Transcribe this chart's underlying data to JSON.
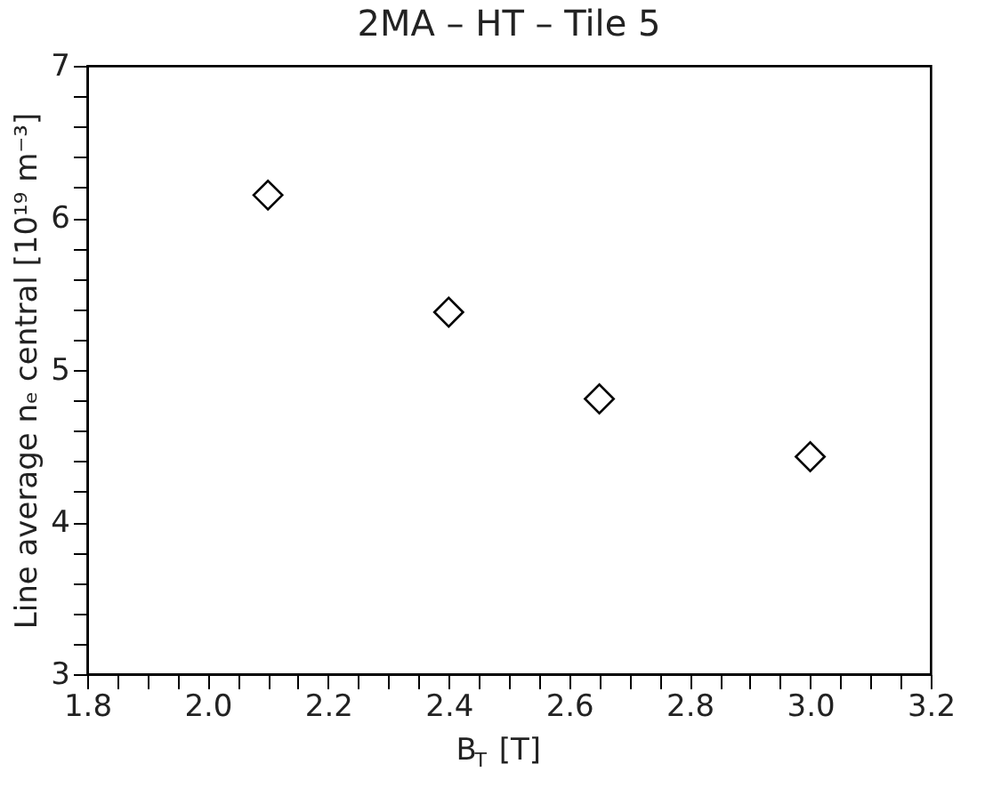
{
  "chart_data": {
    "type": "scatter",
    "title": "2MA – HT – Tile 5",
    "xlabel": "B$_{T}$ [T]",
    "ylabel": "Line average nₑ central [10¹⁹ m⁻³]",
    "x": [
      2.1,
      2.4,
      2.65,
      3.0
    ],
    "series": [
      {
        "color": "#000000",
        "values": [
          6.15,
          5.38,
          4.81,
          4.43
        ]
      }
    ],
    "marker": "diamond",
    "grid": false,
    "xlim": [
      1.8,
      3.2
    ],
    "xticks": [
      1.8,
      {
        "value": 1.85,
        "label": null
      },
      {
        "value": 1.9,
        "label": null
      },
      {
        "value": 1.95,
        "label": null
      },
      {
        "value": 2.0,
        "label": "2.0"
      },
      {
        "value": 2.05,
        "label": null
      },
      {
        "value": 2.1,
        "label": null
      },
      {
        "value": 2.15,
        "label": null
      },
      2.2,
      {
        "value": 2.25,
        "label": null
      },
      {
        "value": 2.3,
        "label": null
      },
      {
        "value": 2.35,
        "label": null
      },
      2.4,
      {
        "value": 2.45,
        "label": null
      },
      {
        "value": 2.5,
        "label": null
      },
      {
        "value": 2.55,
        "label": null
      },
      2.6,
      {
        "value": 2.65,
        "label": null
      },
      {
        "value": 2.7,
        "label": null
      },
      {
        "value": 2.75,
        "label": null
      },
      2.8,
      {
        "value": 2.85,
        "label": null
      },
      {
        "value": 2.9,
        "label": null
      },
      {
        "value": 2.95,
        "label": null
      },
      {
        "value": 3.0,
        "label": "3.0"
      },
      {
        "value": 3.05,
        "label": null
      },
      {
        "value": 3.1,
        "label": null
      },
      {
        "value": 3.15,
        "label": null
      },
      3.2
    ],
    "ylim": [
      3,
      7
    ],
    "yticks": [
      3,
      {
        "value": 3.2,
        "label": null
      },
      {
        "value": 3.4,
        "label": null
      },
      {
        "value": 3.6,
        "label": null
      },
      {
        "value": 3.8,
        "label": null
      },
      4,
      {
        "value": 4.2,
        "label": null
      },
      {
        "value": 4.4,
        "label": null
      },
      {
        "value": 4.6,
        "label": null
      },
      {
        "value": 4.8,
        "label": null
      },
      5,
      {
        "value": 5.2,
        "label": null
      },
      {
        "value": 5.4,
        "label": null
      },
      {
        "value": 5.6,
        "label": null
      },
      {
        "value": 5.8,
        "label": null
      },
      6,
      {
        "value": 6.2,
        "label": null
      },
      {
        "value": 6.4,
        "label": null
      },
      {
        "value": 6.6,
        "label": null
      },
      {
        "value": 6.8,
        "label": null
      },
      7
    ]
  }
}
